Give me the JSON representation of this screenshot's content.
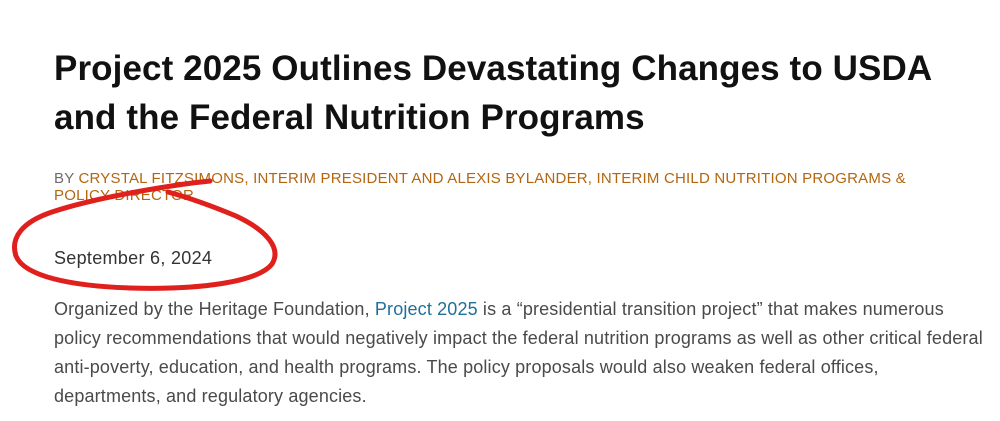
{
  "article": {
    "title": "Project 2025 Outlines Devastating Changes to USDA and the Federal Nutrition Programs",
    "byline_prefix": "BY ",
    "byline_authors": "CRYSTAL FITZSIMONS, INTERIM PRESIDENT AND ALEXIS BYLANDER, INTERIM CHILD NUTRITION PROGRAMS & POLICY DIRECTOR",
    "date": "September 6, 2024",
    "intro": {
      "before_link": "Organized by the Heritage Foundation, ",
      "link_text": "Project 2025",
      "after_link": " is a “presidential transition project” that makes numerous policy recommendations that would negatively impact the federal nutrition programs as well as other critical federal anti-poverty, education, and health programs. The policy proposals would also weaken federal offices, departments, and regulatory agencies."
    }
  },
  "colors": {
    "title": "#111111",
    "byline": "#b4650f",
    "link": "#1f6f9a",
    "annotation": "#e0201d"
  }
}
